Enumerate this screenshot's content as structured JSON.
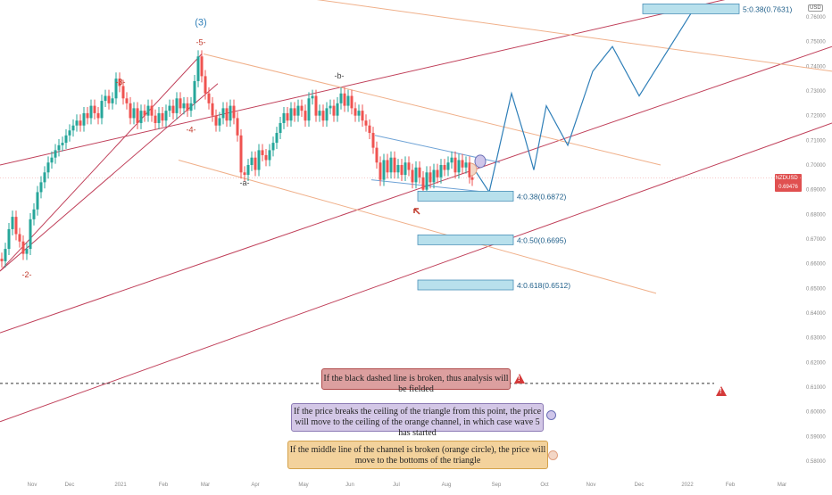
{
  "chart_data": {
    "type": "candlestick",
    "symbol": "NZDUSD",
    "currency": "USD",
    "current_price": "0.69476",
    "countdown": "16:06:28",
    "y_ticks": [
      "0.76000",
      "0.75000",
      "0.74000",
      "0.73000",
      "0.72000",
      "0.71000",
      "0.70000",
      "0.69000",
      "0.68000",
      "0.67000",
      "0.66000",
      "0.65000",
      "0.64000",
      "0.63000",
      "0.62000",
      "0.61000",
      "0.60000",
      "0.59000",
      "0.58000"
    ],
    "x_ticks": [
      "Nov",
      "Dec",
      "2021",
      "Feb",
      "Mar",
      "Apr",
      "May",
      "Jun",
      "Jul",
      "Aug",
      "Sep",
      "Oct",
      "Nov",
      "Dec",
      "2022",
      "Feb",
      "Mar"
    ],
    "wave_labels": [
      "(3)",
      "-5-",
      "-3-",
      "-4-",
      "-2-",
      "-a-",
      "-b-"
    ],
    "targets": [
      {
        "label": "5:0.38(0.7631)",
        "price": 0.7631
      },
      {
        "label": "4:0.38(0.6872)",
        "price": 0.6872
      },
      {
        "label": "4:0.50(0.6695)",
        "price": 0.6695
      },
      {
        "label": "4:0.618(0.6512)",
        "price": 0.6512
      }
    ],
    "price_path": [
      [
        0,
        0.662
      ],
      [
        4,
        0.661
      ],
      [
        8,
        0.666
      ],
      [
        12,
        0.674
      ],
      [
        16,
        0.679
      ],
      [
        20,
        0.672
      ],
      [
        24,
        0.669
      ],
      [
        28,
        0.664
      ],
      [
        32,
        0.666
      ],
      [
        36,
        0.678
      ],
      [
        40,
        0.682
      ],
      [
        44,
        0.689
      ],
      [
        48,
        0.693
      ],
      [
        52,
        0.697
      ],
      [
        56,
        0.701
      ],
      [
        60,
        0.703
      ],
      [
        64,
        0.706
      ],
      [
        68,
        0.708
      ],
      [
        72,
        0.709
      ],
      [
        76,
        0.712
      ],
      [
        80,
        0.714
      ],
      [
        84,
        0.716
      ],
      [
        88,
        0.718
      ],
      [
        92,
        0.716
      ],
      [
        96,
        0.721
      ],
      [
        100,
        0.719
      ],
      [
        104,
        0.724
      ],
      [
        108,
        0.721
      ],
      [
        112,
        0.719
      ],
      [
        116,
        0.726
      ],
      [
        120,
        0.728
      ],
      [
        124,
        0.725
      ],
      [
        128,
        0.727
      ],
      [
        132,
        0.735
      ],
      [
        136,
        0.732
      ],
      [
        140,
        0.727
      ],
      [
        144,
        0.725
      ],
      [
        148,
        0.719
      ],
      [
        152,
        0.723
      ],
      [
        156,
        0.717
      ],
      [
        160,
        0.722
      ],
      [
        164,
        0.72
      ],
      [
        168,
        0.724
      ],
      [
        172,
        0.72
      ],
      [
        176,
        0.717
      ],
      [
        180,
        0.721
      ],
      [
        184,
        0.718
      ],
      [
        188,
        0.722
      ],
      [
        192,
        0.724
      ],
      [
        196,
        0.721
      ],
      [
        200,
        0.727
      ],
      [
        204,
        0.723
      ],
      [
        208,
        0.725
      ],
      [
        212,
        0.722
      ],
      [
        216,
        0.725
      ],
      [
        220,
        0.734
      ],
      [
        224,
        0.744
      ],
      [
        228,
        0.736
      ],
      [
        232,
        0.729
      ],
      [
        236,
        0.725
      ],
      [
        240,
        0.72
      ],
      [
        244,
        0.716
      ],
      [
        248,
        0.719
      ],
      [
        252,
        0.723
      ],
      [
        256,
        0.718
      ],
      [
        260,
        0.724
      ],
      [
        264,
        0.719
      ],
      [
        268,
        0.712
      ],
      [
        272,
        0.697
      ],
      [
        276,
        0.696
      ],
      [
        280,
        0.7
      ],
      [
        284,
        0.703
      ],
      [
        288,
        0.698
      ],
      [
        292,
        0.706
      ],
      [
        296,
        0.704
      ],
      [
        300,
        0.702
      ],
      [
        304,
        0.706
      ],
      [
        308,
        0.709
      ],
      [
        312,
        0.713
      ],
      [
        316,
        0.717
      ],
      [
        320,
        0.721
      ],
      [
        324,
        0.718
      ],
      [
        328,
        0.723
      ],
      [
        332,
        0.72
      ],
      [
        336,
        0.724
      ],
      [
        340,
        0.722
      ],
      [
        344,
        0.718
      ],
      [
        348,
        0.727
      ],
      [
        352,
        0.728
      ],
      [
        356,
        0.72
      ],
      [
        360,
        0.722
      ],
      [
        364,
        0.718
      ],
      [
        368,
        0.723
      ],
      [
        372,
        0.724
      ],
      [
        376,
        0.72
      ],
      [
        380,
        0.725
      ],
      [
        384,
        0.729
      ],
      [
        388,
        0.724
      ],
      [
        392,
        0.728
      ],
      [
        396,
        0.723
      ],
      [
        400,
        0.72
      ],
      [
        404,
        0.722
      ],
      [
        408,
        0.718
      ],
      [
        412,
        0.716
      ],
      [
        416,
        0.713
      ],
      [
        420,
        0.707
      ],
      [
        424,
        0.701
      ],
      [
        428,
        0.694
      ],
      [
        432,
        0.702
      ],
      [
        436,
        0.697
      ],
      [
        440,
        0.703
      ],
      [
        444,
        0.697
      ],
      [
        448,
        0.7
      ],
      [
        452,
        0.696
      ],
      [
        456,
        0.701
      ],
      [
        460,
        0.698
      ],
      [
        464,
        0.693
      ],
      [
        468,
        0.699
      ],
      [
        472,
        0.695
      ],
      [
        476,
        0.69
      ],
      [
        480,
        0.697
      ],
      [
        484,
        0.693
      ],
      [
        488,
        0.698
      ],
      [
        492,
        0.695
      ],
      [
        496,
        0.7
      ],
      [
        500,
        0.698
      ],
      [
        504,
        0.701
      ],
      [
        508,
        0.703
      ],
      [
        512,
        0.697
      ],
      [
        516,
        0.702
      ],
      [
        520,
        0.699
      ],
      [
        524,
        0.701
      ],
      [
        528,
        0.695
      ],
      [
        530,
        0.694
      ]
    ],
    "projection": [
      [
        530,
        0.699
      ],
      [
        548,
        0.689
      ],
      [
        573,
        0.729
      ],
      [
        588,
        0.711
      ],
      [
        598,
        0.698
      ],
      [
        612,
        0.724
      ],
      [
        636,
        0.708
      ],
      [
        664,
        0.738
      ],
      [
        686,
        0.748
      ],
      [
        716,
        0.728
      ],
      [
        775,
        0.762
      ]
    ],
    "channels": [
      {
        "color": "#c0405a",
        "points": [
          [
            0,
            0.7
          ],
          [
            848,
            0.77
          ]
        ]
      },
      {
        "color": "#c0405a",
        "points": [
          [
            0,
            0.632
          ],
          [
            932,
            0.748
          ]
        ]
      },
      {
        "color": "#c0405a",
        "points": [
          [
            0,
            0.596
          ],
          [
            932,
            0.717
          ]
        ]
      },
      {
        "color": "#c0405a",
        "points": [
          [
            0,
            0.657
          ],
          [
            226,
            0.745
          ]
        ]
      },
      {
        "color": "#c0405a",
        "points": [
          [
            0,
            0.657
          ],
          [
            244,
            0.733
          ]
        ]
      },
      {
        "color": "#f0b08a",
        "points": [
          [
            316,
            0.769
          ],
          [
            932,
            0.738
          ]
        ]
      },
      {
        "color": "#f0b08a",
        "points": [
          [
            228,
            0.745
          ],
          [
            740,
            0.7
          ]
        ]
      },
      {
        "color": "#f0b08a",
        "points": [
          [
            200,
            0.702
          ],
          [
            735,
            0.648
          ]
        ]
      },
      {
        "color": "#6fa3d6",
        "points": [
          [
            420,
            0.712
          ],
          [
            560,
            0.701
          ]
        ]
      },
      {
        "color": "#6fa3d6",
        "points": [
          [
            416,
            0.694
          ],
          [
            545,
            0.689
          ]
        ]
      }
    ],
    "dashed_level": 0.6115,
    "notes": [
      "If the black dashed line is broken, thus analysis will be fielded",
      "If the price breaks the ceiling of the triangle from this point, the price will move to the ceiling of the orange channel, in which case wave 5 has started",
      "If the middle line of the channel is broken (orange  circle), the price will move to the bottoms of the triangle"
    ],
    "colors": {
      "up": "#26a69a",
      "down": "#ef5350",
      "channel": "#c0405a",
      "orange": "#f0b08a",
      "target_fill": "#b8e0ec",
      "target_stroke": "#4a90b8",
      "blue": "#2f7fb8"
    }
  }
}
